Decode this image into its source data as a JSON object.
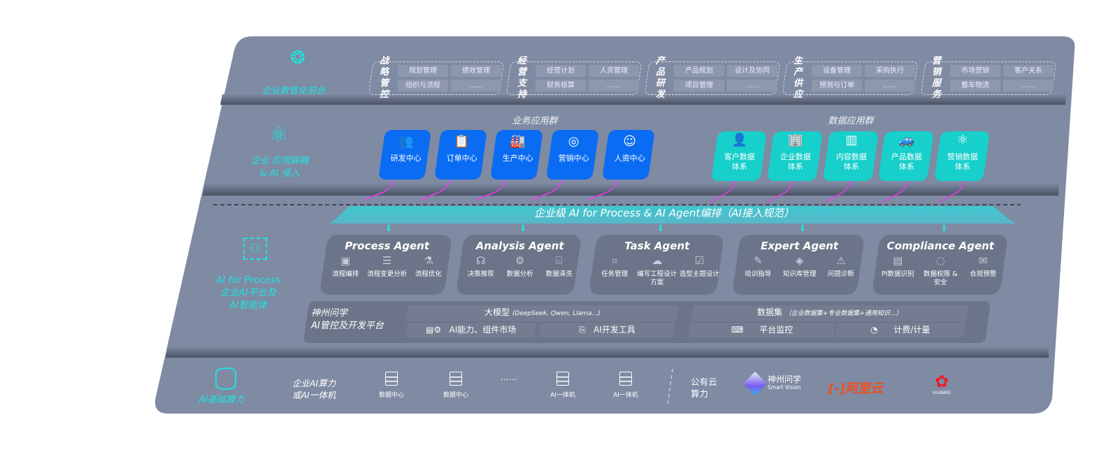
{
  "layers": {
    "front": {
      "label": "企业数智化前台",
      "icon": "brain-icon"
    },
    "apps": {
      "label_line1": "企业 应用解耦",
      "label_line2": "& AI 侵入",
      "icon": "molecule-icon"
    },
    "ai": {
      "label_line1": "AI for Process",
      "label_line2": "企业AI平台及",
      "label_line3": "AI智能体",
      "icon": "face-scan-icon"
    },
    "infra": {
      "label": "AI基础算力",
      "icon": "database-icon"
    }
  },
  "front_groups": [
    {
      "label": "战略管控",
      "items": [
        "规划管理",
        "绩效管理",
        "组织与流程",
        "……"
      ]
    },
    {
      "label": "经营支持",
      "items": [
        "经营计划",
        "人资管理",
        "财务核算",
        "……"
      ]
    },
    {
      "label": "产品研发",
      "items": [
        "产品规划",
        "设计及协同",
        "项目管理",
        "……"
      ]
    },
    {
      "label": "生产供应",
      "items": [
        "设备管理",
        "采购执行",
        "预测与订单",
        "……"
      ]
    },
    {
      "label": "营销服务",
      "items": [
        "市场营销",
        "客户关系",
        "整车物流",
        "……"
      ]
    }
  ],
  "business_apps": {
    "title": "业务应用群",
    "items": [
      {
        "label": "研发中心",
        "icon": "team-icon"
      },
      {
        "label": "订单中心",
        "icon": "clipboard-icon"
      },
      {
        "label": "生产中心",
        "icon": "factory-icon"
      },
      {
        "label": "营销中心",
        "icon": "target-icon"
      },
      {
        "label": "人资中心",
        "icon": "person-icon"
      }
    ]
  },
  "data_apps": {
    "title": "数据应用群",
    "items": [
      {
        "line1": "客户数据",
        "line2": "体系",
        "icon": "user-icon"
      },
      {
        "line1": "企业数据",
        "line2": "体系",
        "icon": "building-icon"
      },
      {
        "line1": "内容数据",
        "line2": "体系",
        "icon": "books-icon"
      },
      {
        "line1": "产品数据",
        "line2": "体系",
        "icon": "car-icon"
      },
      {
        "line1": "营销数据",
        "line2": "体系",
        "icon": "atom-icon"
      }
    ]
  },
  "banner": "企业级 AI for Process & AI Agent编排（AI接入规范）",
  "agents": [
    {
      "name": "Process Agent",
      "items": [
        "流程编排",
        "流程变更分析",
        "流程优化"
      ]
    },
    {
      "name": "Analysis Agent",
      "items": [
        "决策推荐",
        "数据分析",
        "数据清洗"
      ]
    },
    {
      "name": "Task Agent",
      "items": [
        "任务管理",
        "编写工程设计方案",
        "造型主题设计"
      ]
    },
    {
      "name": "Expert Agent",
      "items": [
        "培训指导",
        "知识库管理",
        "问题诊断"
      ]
    },
    {
      "name": "Compliance Agent",
      "items": [
        "PI数据识别",
        "数据权限 & 安全",
        "合规预警"
      ]
    }
  ],
  "platform": {
    "line1": "神州问学",
    "line2": "AI管控及开发平台",
    "model": "大模型",
    "model_note": "(DeepSeek, Qwen, Llama...)",
    "dataset": "数据集",
    "dataset_note": "（企业数据集+专业数据集+通用知识...）",
    "tools": [
      "AI能力、组件市场",
      "AI开发工具",
      "平台监控",
      "计费/计量"
    ]
  },
  "infra": {
    "private_line1": "企业AI算力",
    "private_line2": "或AI一体机",
    "servers": [
      "数据中心",
      "数据中心",
      "……",
      "AI一体机",
      "AI一体机"
    ],
    "public_line1": "公有云",
    "public_line2": "算力",
    "logos": {
      "shenzhou": "神州问学",
      "shenzhou_en": "Smart Vision",
      "aliyun": "阿里云",
      "huawei": "HUAWEI"
    }
  },
  "colors": {
    "board": "#7f8aa3",
    "blue": "#0a6cf2",
    "cyan": "#17cfcb",
    "teal_text": "#1ee3e0",
    "arrow": "#e040e8"
  }
}
